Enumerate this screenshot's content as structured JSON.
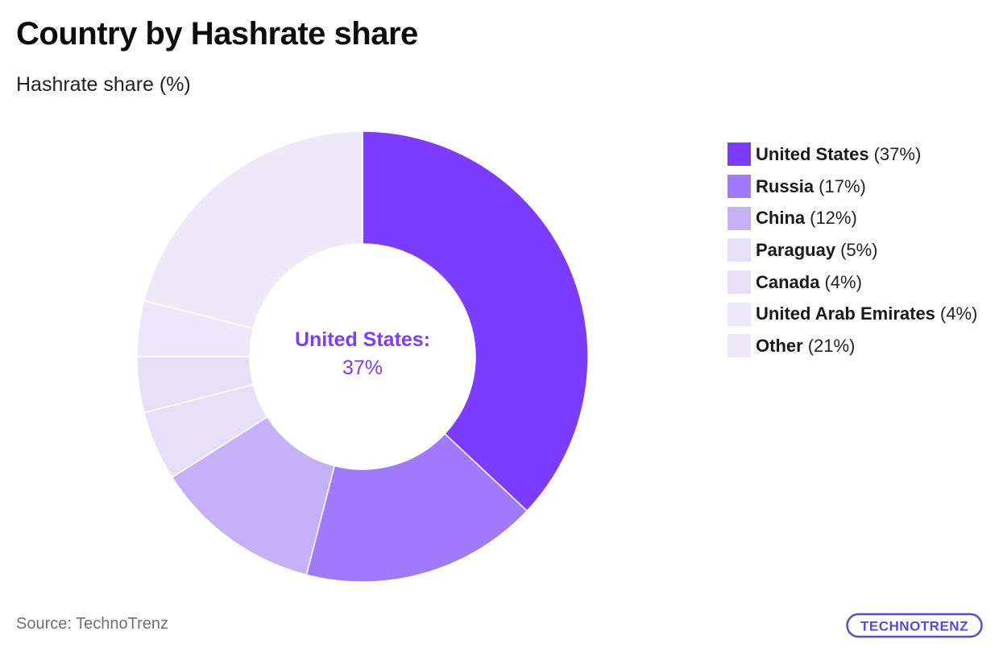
{
  "title": "Country by Hashrate share",
  "subtitle": "Hashrate share (%)",
  "source": "Source: TechnoTrenz",
  "logo_text": "TECHNOTRENZ",
  "center_label": {
    "name": "United States:",
    "value": "37%"
  },
  "colors": {
    "accent": "#7b3cff",
    "logo": "#5b49d6"
  },
  "chart_data": {
    "type": "pie",
    "donut": true,
    "title": "Country by Hashrate share",
    "subtitle": "Hashrate share (%)",
    "legend_position": "right",
    "categories": [
      "United States",
      "Russia",
      "China",
      "Paraguay",
      "Canada",
      "United Arab Emirates",
      "Other"
    ],
    "values": [
      37,
      17,
      12,
      5,
      4,
      4,
      21
    ],
    "legend_labels": [
      {
        "name": "United States",
        "pct": "(37%)"
      },
      {
        "name": "Russia",
        "pct": "(17%)"
      },
      {
        "name": "China",
        "pct": "(12%)"
      },
      {
        "name": "Paraguay",
        "pct": "(5%)"
      },
      {
        "name": "Canada",
        "pct": "(4%)"
      },
      {
        "name": "United Arab Emirates",
        "pct": "(4%)"
      },
      {
        "name": "Other",
        "pct": "(21%)"
      }
    ],
    "colors": [
      "#7b3cff",
      "#a07afc",
      "#c6b0f8",
      "#e6dff8",
      "#e6dff8",
      "#ece7f9",
      "#ede9f8"
    ]
  }
}
